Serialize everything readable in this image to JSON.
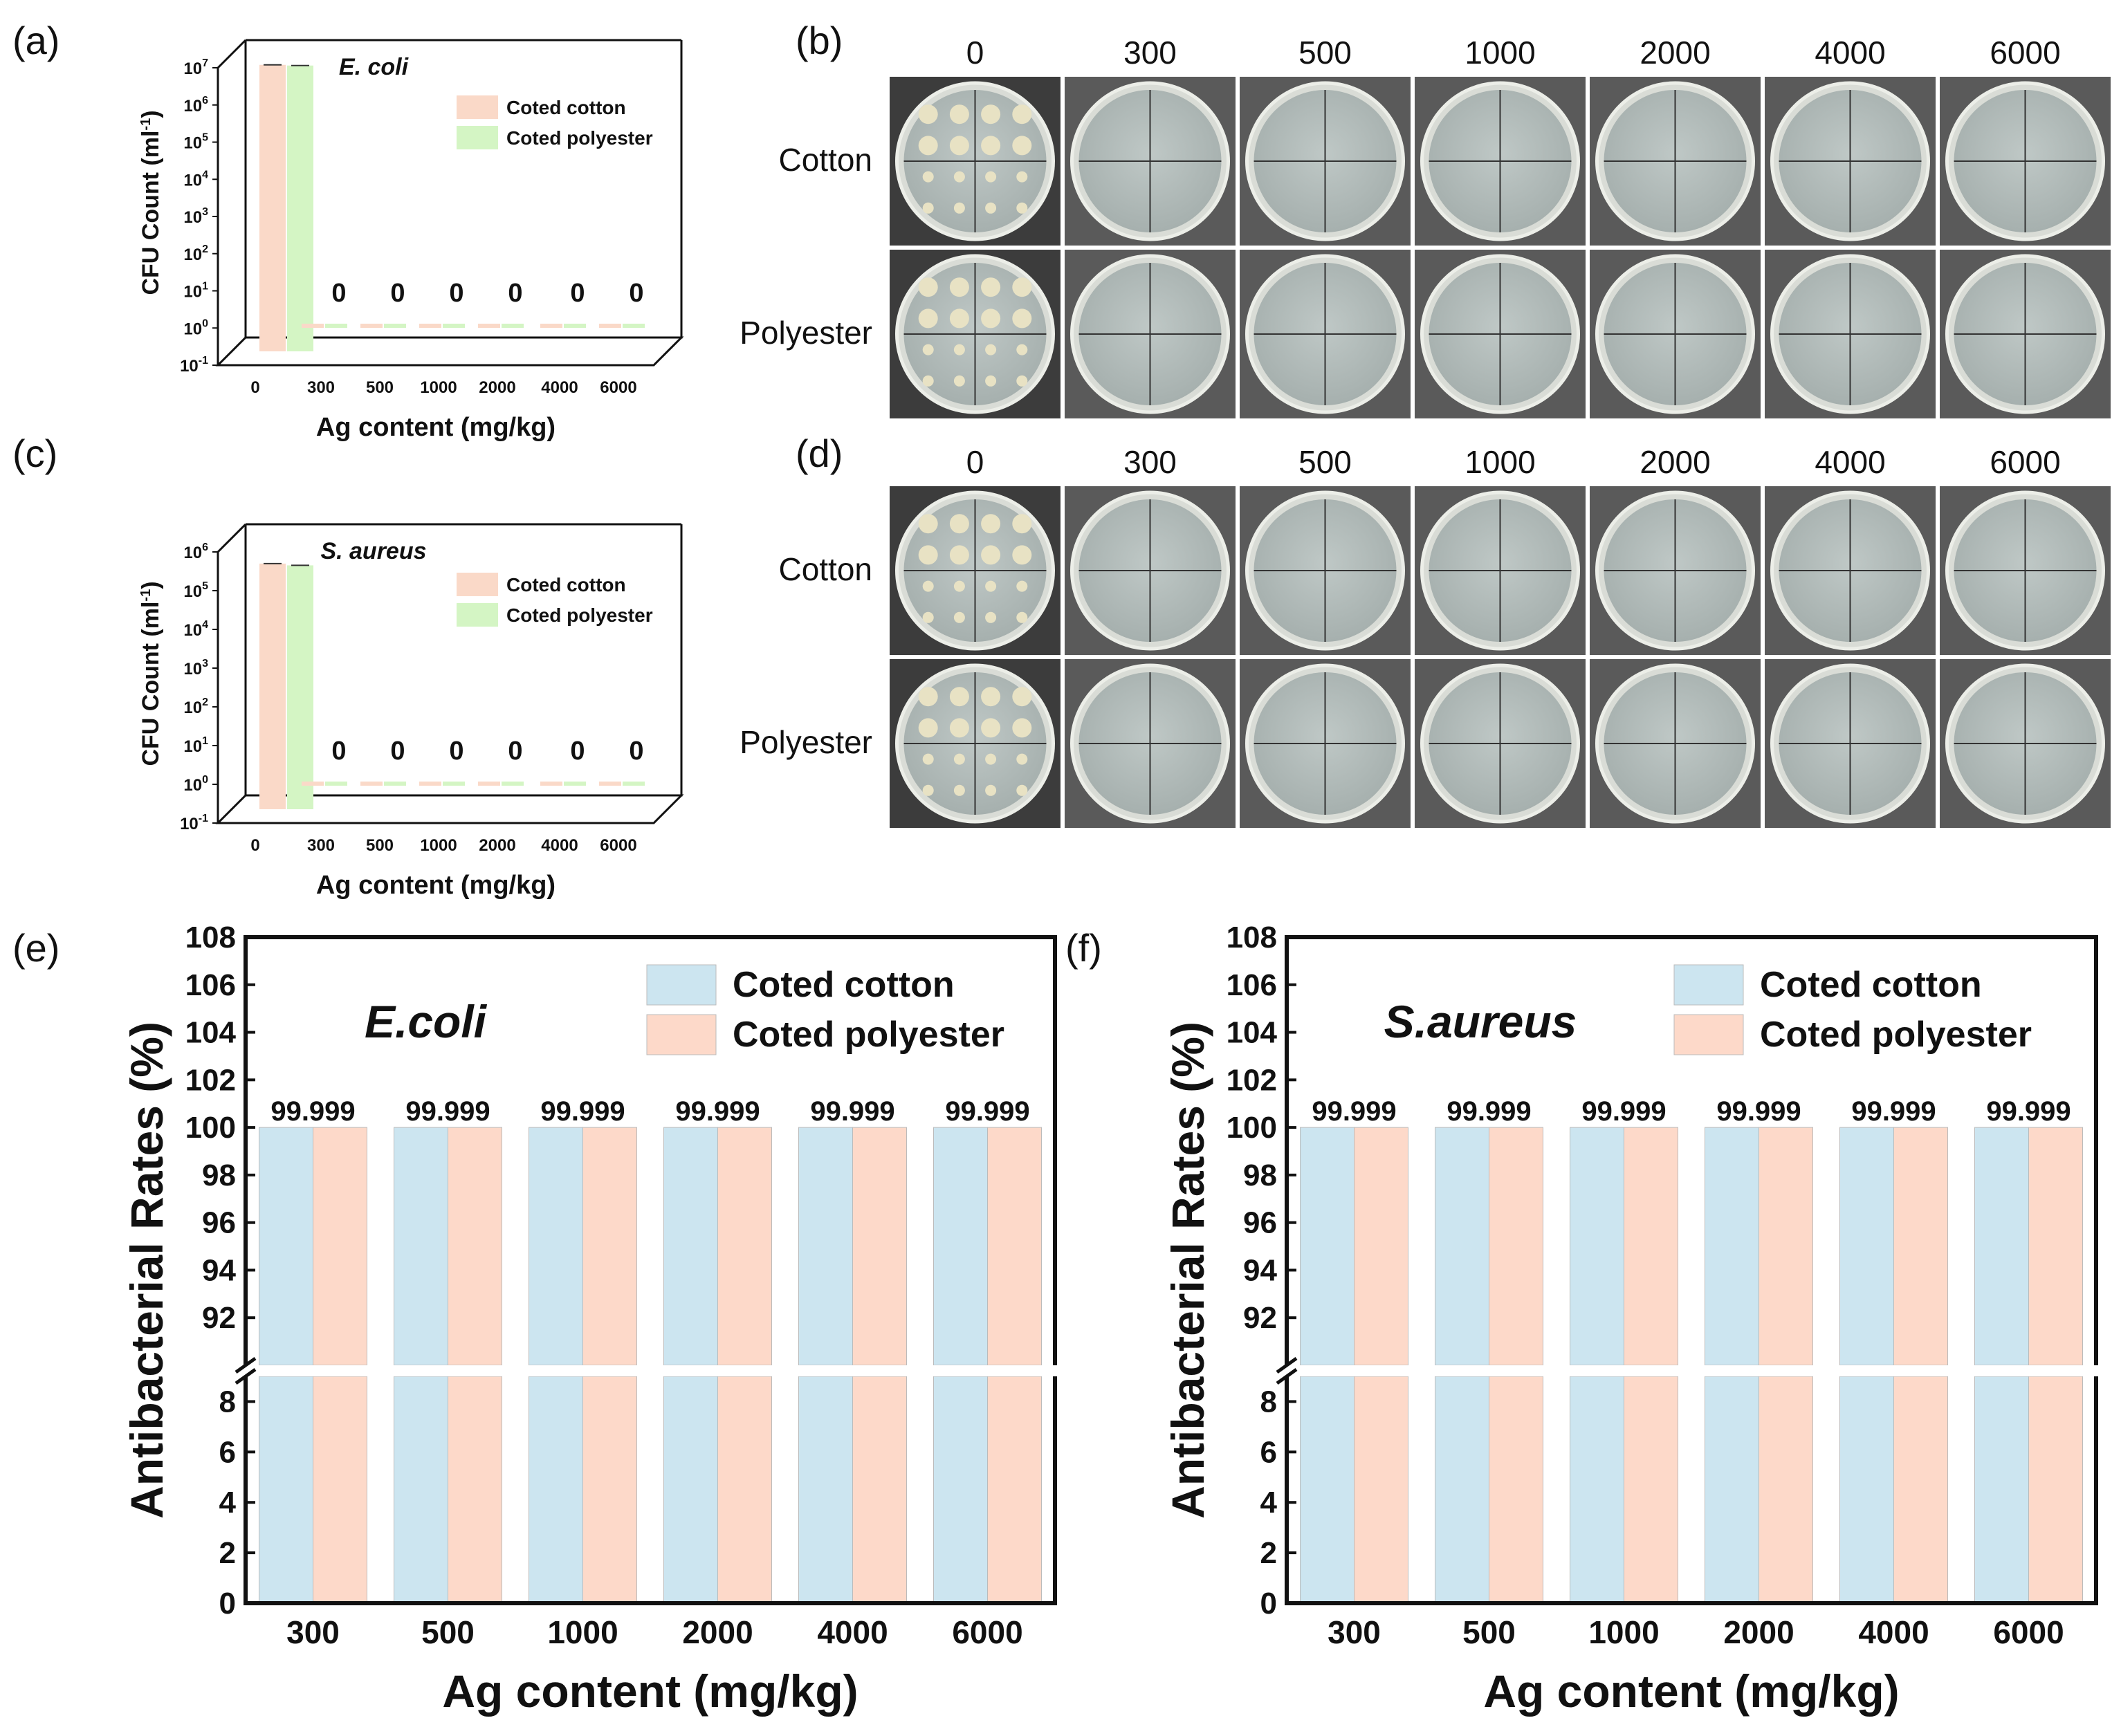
{
  "figure": {
    "panels": {
      "a": "(a)",
      "b": "(b)",
      "c": "(c)",
      "d": "(d)",
      "e": "(e)",
      "f": "(f)"
    },
    "legend": {
      "cotton": "Coted cotton",
      "polyester": "Coted polyester"
    },
    "colors": {
      "cotton_3d": "#fad9c8",
      "polyester_3d": "#d4f5c4",
      "cotton_bar": "#cce5f0",
      "polyester_bar": "#fdd9c9"
    }
  },
  "plates": {
    "b": {
      "columns": [
        "0",
        "300",
        "500",
        "1000",
        "2000",
        "4000",
        "6000"
      ],
      "rows": [
        "Cotton",
        "Polyester"
      ]
    },
    "d": {
      "columns": [
        "0",
        "300",
        "500",
        "1000",
        "2000",
        "4000",
        "6000"
      ],
      "rows": [
        "Cotton",
        "Polyester"
      ]
    }
  },
  "chart_data": [
    {
      "id": "a",
      "type": "bar",
      "title": "E. coli",
      "xlabel": "Ag content (mg/kg)",
      "ylabel": "CFU Count (ml",
      "ylabel_sup": "-1",
      "ylabel_end": ")",
      "yscale": "log",
      "ytick_labels": [
        "10",
        "10",
        "10",
        "10",
        "10",
        "10",
        "10",
        "10",
        "10"
      ],
      "ytick_exponents": [
        "-1",
        "0",
        "1",
        "2",
        "3",
        "4",
        "5",
        "6",
        "7"
      ],
      "categories": [
        "0",
        "300",
        "500",
        "1000",
        "2000",
        "4000",
        "6000"
      ],
      "series": [
        {
          "name": "Coted cotton",
          "values": [
            12000000,
            0,
            0,
            0,
            0,
            0,
            0
          ]
        },
        {
          "name": "Coted polyester",
          "values": [
            11500000,
            0,
            0,
            0,
            0,
            0,
            0
          ]
        }
      ],
      "annotations": [
        "0",
        "0",
        "0",
        "0",
        "0",
        "0"
      ]
    },
    {
      "id": "c",
      "type": "bar",
      "title": "S. aureus",
      "xlabel": "Ag content (mg/kg)",
      "ylabel": "CFU Count (ml",
      "ylabel_sup": "-1",
      "ylabel_end": ")",
      "yscale": "log",
      "ytick_labels": [
        "10",
        "10",
        "10",
        "10",
        "10",
        "10",
        "10",
        "10"
      ],
      "ytick_exponents": [
        "-1",
        "0",
        "1",
        "2",
        "3",
        "4",
        "5",
        "6"
      ],
      "categories": [
        "0",
        "300",
        "500",
        "1000",
        "2000",
        "4000",
        "6000"
      ],
      "series": [
        {
          "name": "Coted cotton",
          "values": [
            500000,
            0,
            0,
            0,
            0,
            0,
            0
          ]
        },
        {
          "name": "Coted polyester",
          "values": [
            450000,
            0,
            0,
            0,
            0,
            0,
            0
          ]
        }
      ],
      "annotations": [
        "0",
        "0",
        "0",
        "0",
        "0",
        "0"
      ]
    },
    {
      "id": "e",
      "type": "bar",
      "title": "E.coli",
      "xlabel": "Ag content (mg/kg)",
      "ylabel": "Antibacterial Rates (%)",
      "axis_break": [
        9,
        90
      ],
      "upper_ticks": [
        "92",
        "94",
        "96",
        "98",
        "100",
        "102",
        "104",
        "106",
        "108"
      ],
      "lower_ticks": [
        "0",
        "2",
        "4",
        "6",
        "8"
      ],
      "categories": [
        "300",
        "500",
        "1000",
        "2000",
        "4000",
        "6000"
      ],
      "series": [
        {
          "name": "Coted cotton",
          "values": [
            100,
            100,
            100,
            100,
            100,
            100
          ]
        },
        {
          "name": "Coted polyester",
          "values": [
            100,
            100,
            100,
            100,
            100,
            100
          ]
        }
      ],
      "data_labels": [
        "99.999",
        "99.999",
        "99.999",
        "99.999",
        "99.999",
        "99.999"
      ]
    },
    {
      "id": "f",
      "type": "bar",
      "title": "S.aureus",
      "xlabel": "Ag content (mg/kg)",
      "ylabel": "Antibacterial Rates (%)",
      "axis_break": [
        9,
        90
      ],
      "upper_ticks": [
        "92",
        "94",
        "96",
        "98",
        "100",
        "102",
        "104",
        "106",
        "108"
      ],
      "lower_ticks": [
        "0",
        "2",
        "4",
        "6",
        "8"
      ],
      "categories": [
        "300",
        "500",
        "1000",
        "2000",
        "4000",
        "6000"
      ],
      "series": [
        {
          "name": "Coted cotton",
          "values": [
            100,
            100,
            100,
            100,
            100,
            100
          ]
        },
        {
          "name": "Coted polyester",
          "values": [
            100,
            100,
            100,
            100,
            100,
            100
          ]
        }
      ],
      "data_labels": [
        "99.999",
        "99.999",
        "99.999",
        "99.999",
        "99.999",
        "99.999"
      ]
    }
  ]
}
